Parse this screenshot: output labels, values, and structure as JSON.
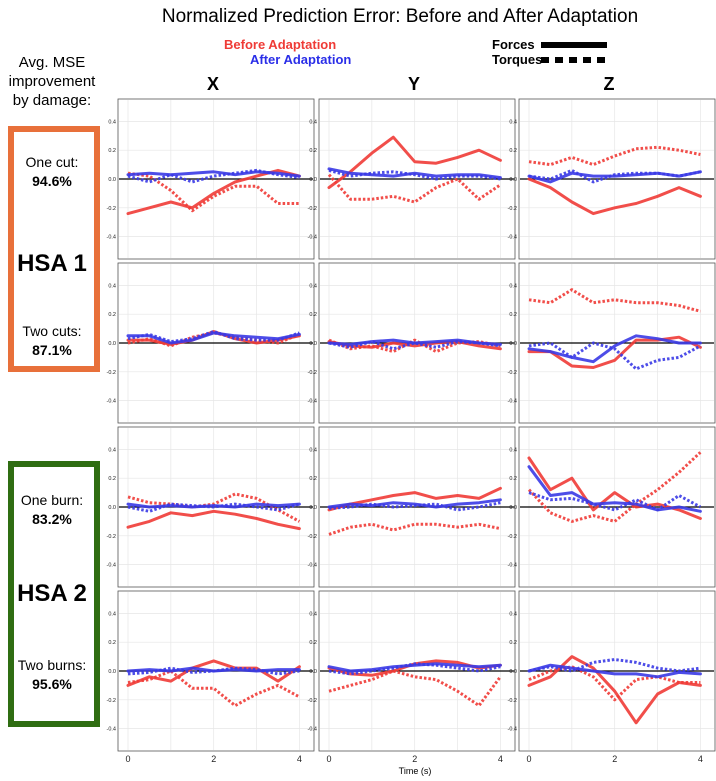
{
  "title": "Normalized Prediction Error: Before and After Adaptation",
  "legend": {
    "before": "Before Adaptation",
    "after": "After Adaptation",
    "forces": "Forces",
    "torques": "Torques"
  },
  "side_header": [
    "Avg. MSE",
    "improvement",
    "by damage:"
  ],
  "columns": [
    "X",
    "Y",
    "Z"
  ],
  "groups": [
    {
      "label": "HSA 1",
      "color": "#e8703a",
      "rows": [
        {
          "name": "One cut:",
          "value": "94.6%"
        },
        {
          "name": "Two cuts:",
          "value": "87.1%"
        }
      ]
    },
    {
      "label": "HSA 2",
      "color": "#2f6d12",
      "rows": [
        {
          "name": "One burn:",
          "value": "83.2%"
        },
        {
          "name": "Two burns:",
          "value": "95.6%"
        }
      ]
    }
  ],
  "colors": {
    "before": "#ef3b36",
    "after": "#3a3ae6"
  },
  "chart_data": {
    "type": "line",
    "xlabel": "Time (s)",
    "xlim": [
      0,
      4.2
    ],
    "ylim": [
      -0.5,
      0.5
    ],
    "xticks": [
      0,
      2,
      4
    ],
    "yticks": [
      -0.4,
      -0.2,
      0.0,
      0.2,
      0.4
    ],
    "x": [
      0,
      0.5,
      1,
      1.5,
      2,
      2.5,
      3,
      3.5,
      4
    ],
    "panels": [
      {
        "row": "One cut",
        "col": "X",
        "series": [
          {
            "name": "Before Adaptation",
            "kind": "Forces",
            "values": [
              -0.24,
              -0.2,
              -0.16,
              -0.2,
              -0.1,
              -0.02,
              0.02,
              0.06,
              0.02
            ]
          },
          {
            "name": "Before Adaptation",
            "kind": "Torques",
            "values": [
              0.04,
              0.02,
              -0.08,
              -0.22,
              -0.12,
              -0.05,
              -0.05,
              -0.17,
              -0.17
            ]
          },
          {
            "name": "After Adaptation",
            "kind": "Forces",
            "values": [
              0.03,
              0.04,
              0.03,
              0.04,
              0.05,
              0.03,
              0.05,
              0.04,
              0.02
            ]
          },
          {
            "name": "After Adaptation",
            "kind": "Torques",
            "values": [
              0.02,
              -0.02,
              0.03,
              -0.02,
              0.02,
              0.04,
              0.06,
              0.03,
              0.01
            ]
          }
        ]
      },
      {
        "row": "One cut",
        "col": "Y",
        "series": [
          {
            "name": "Before Adaptation",
            "kind": "Forces",
            "values": [
              -0.06,
              0.05,
              0.18,
              0.29,
              0.12,
              0.11,
              0.15,
              0.2,
              0.13
            ]
          },
          {
            "name": "Before Adaptation",
            "kind": "Torques",
            "values": [
              0.03,
              -0.14,
              -0.14,
              -0.12,
              -0.16,
              -0.06,
              0.0,
              -0.14,
              -0.04
            ]
          },
          {
            "name": "After Adaptation",
            "kind": "Forces",
            "values": [
              0.07,
              0.04,
              0.03,
              0.02,
              0.04,
              0.02,
              0.03,
              0.03,
              0.01
            ]
          },
          {
            "name": "After Adaptation",
            "kind": "Torques",
            "values": [
              0.06,
              0.02,
              0.04,
              0.05,
              0.03,
              0.0,
              0.02,
              0.02,
              0.0
            ]
          }
        ]
      },
      {
        "row": "One cut",
        "col": "Z",
        "series": [
          {
            "name": "Before Adaptation",
            "kind": "Forces",
            "values": [
              0.0,
              -0.06,
              -0.16,
              -0.24,
              -0.2,
              -0.17,
              -0.12,
              -0.06,
              -0.12
            ]
          },
          {
            "name": "Before Adaptation",
            "kind": "Torques",
            "values": [
              0.12,
              0.1,
              0.15,
              0.1,
              0.16,
              0.21,
              0.22,
              0.2,
              0.17
            ]
          },
          {
            "name": "After Adaptation",
            "kind": "Forces",
            "values": [
              0.02,
              -0.02,
              0.04,
              0.02,
              0.02,
              0.03,
              0.04,
              0.02,
              0.05
            ]
          },
          {
            "name": "After Adaptation",
            "kind": "Torques",
            "values": [
              0.02,
              0.0,
              0.06,
              -0.02,
              0.03,
              0.04,
              0.04,
              0.02,
              0.05
            ]
          }
        ]
      },
      {
        "row": "Two cuts",
        "col": "X",
        "series": [
          {
            "name": "Before Adaptation",
            "kind": "Forces",
            "values": [
              0.02,
              0.02,
              -0.01,
              0.02,
              0.08,
              0.03,
              0.0,
              0.02,
              0.05
            ]
          },
          {
            "name": "Before Adaptation",
            "kind": "Torques",
            "values": [
              0.0,
              0.03,
              -0.02,
              0.04,
              0.07,
              0.04,
              0.02,
              0.0,
              0.06
            ]
          },
          {
            "name": "After Adaptation",
            "kind": "Forces",
            "values": [
              0.05,
              0.05,
              0.0,
              0.02,
              0.07,
              0.05,
              0.04,
              0.03,
              0.06
            ]
          },
          {
            "name": "After Adaptation",
            "kind": "Torques",
            "values": [
              0.03,
              0.06,
              0.01,
              0.03,
              0.08,
              0.03,
              0.02,
              0.02,
              0.07
            ]
          }
        ]
      },
      {
        "row": "Two cuts",
        "col": "Y",
        "series": [
          {
            "name": "Before Adaptation",
            "kind": "Forces",
            "values": [
              0.01,
              -0.02,
              -0.03,
              0.0,
              -0.02,
              0.0,
              0.01,
              -0.02,
              -0.04
            ]
          },
          {
            "name": "Before Adaptation",
            "kind": "Torques",
            "values": [
              0.02,
              -0.04,
              -0.02,
              -0.06,
              0.02,
              -0.06,
              0.0,
              0.01,
              -0.02
            ]
          },
          {
            "name": "After Adaptation",
            "kind": "Forces",
            "values": [
              0.0,
              -0.01,
              0.01,
              0.02,
              0.0,
              0.01,
              0.02,
              0.0,
              -0.01
            ]
          },
          {
            "name": "After Adaptation",
            "kind": "Torques",
            "values": [
              0.0,
              -0.03,
              0.01,
              -0.04,
              0.0,
              -0.03,
              0.01,
              0.0,
              -0.02
            ]
          }
        ]
      },
      {
        "row": "Two cuts",
        "col": "Z",
        "series": [
          {
            "name": "Before Adaptation",
            "kind": "Forces",
            "values": [
              -0.06,
              -0.06,
              -0.16,
              -0.17,
              -0.12,
              0.02,
              0.02,
              0.04,
              -0.03
            ]
          },
          {
            "name": "Before Adaptation",
            "kind": "Torques",
            "values": [
              0.3,
              0.28,
              0.37,
              0.28,
              0.3,
              0.28,
              0.28,
              0.26,
              0.22
            ]
          },
          {
            "name": "After Adaptation",
            "kind": "Forces",
            "values": [
              -0.04,
              -0.06,
              -0.1,
              -0.13,
              -0.02,
              0.05,
              0.03,
              0.0,
              0.0
            ]
          },
          {
            "name": "After Adaptation",
            "kind": "Torques",
            "values": [
              -0.02,
              0.0,
              -0.1,
              0.0,
              -0.04,
              -0.18,
              -0.12,
              -0.1,
              -0.02
            ]
          }
        ]
      },
      {
        "row": "One burn",
        "col": "X",
        "series": [
          {
            "name": "Before Adaptation",
            "kind": "Forces",
            "values": [
              -0.14,
              -0.1,
              -0.04,
              -0.06,
              -0.03,
              -0.05,
              -0.08,
              -0.12,
              -0.15
            ]
          },
          {
            "name": "Before Adaptation",
            "kind": "Torques",
            "values": [
              0.07,
              0.03,
              0.02,
              0.0,
              0.02,
              0.09,
              0.06,
              -0.02,
              -0.1
            ]
          },
          {
            "name": "After Adaptation",
            "kind": "Forces",
            "values": [
              0.02,
              0.0,
              0.01,
              0.0,
              0.01,
              0.0,
              0.02,
              0.01,
              0.02
            ]
          },
          {
            "name": "After Adaptation",
            "kind": "Torques",
            "values": [
              0.0,
              -0.03,
              0.02,
              0.01,
              0.0,
              0.02,
              0.0,
              -0.02,
              0.02
            ]
          }
        ]
      },
      {
        "row": "One burn",
        "col": "Y",
        "series": [
          {
            "name": "Before Adaptation",
            "kind": "Forces",
            "values": [
              -0.02,
              0.02,
              0.05,
              0.08,
              0.1,
              0.06,
              0.08,
              0.06,
              0.13
            ]
          },
          {
            "name": "Before Adaptation",
            "kind": "Torques",
            "values": [
              -0.19,
              -0.14,
              -0.12,
              -0.16,
              -0.12,
              -0.12,
              -0.14,
              -0.12,
              -0.15
            ]
          },
          {
            "name": "After Adaptation",
            "kind": "Forces",
            "values": [
              0.0,
              0.02,
              0.01,
              0.03,
              0.02,
              0.0,
              0.02,
              0.03,
              0.05
            ]
          },
          {
            "name": "After Adaptation",
            "kind": "Torques",
            "values": [
              -0.01,
              0.0,
              0.02,
              0.0,
              0.01,
              0.02,
              -0.02,
              0.0,
              0.03
            ]
          }
        ]
      },
      {
        "row": "One burn",
        "col": "Z",
        "series": [
          {
            "name": "Before Adaptation",
            "kind": "Forces",
            "values": [
              0.34,
              0.12,
              0.2,
              -0.02,
              0.1,
              0.0,
              0.02,
              -0.02,
              -0.08
            ]
          },
          {
            "name": "Before Adaptation",
            "kind": "Torques",
            "values": [
              0.12,
              -0.04,
              -0.1,
              -0.06,
              -0.1,
              0.02,
              0.12,
              0.24,
              0.38
            ]
          },
          {
            "name": "After Adaptation",
            "kind": "Forces",
            "values": [
              0.28,
              0.08,
              0.1,
              0.02,
              0.03,
              0.02,
              -0.02,
              0.0,
              -0.03
            ]
          },
          {
            "name": "After Adaptation",
            "kind": "Torques",
            "values": [
              0.1,
              0.05,
              0.06,
              0.02,
              -0.02,
              0.05,
              -0.02,
              0.08,
              0.0
            ]
          }
        ]
      },
      {
        "row": "Two burns",
        "col": "X",
        "series": [
          {
            "name": "Before Adaptation",
            "kind": "Forces",
            "values": [
              -0.1,
              -0.04,
              -0.07,
              0.02,
              0.07,
              0.02,
              0.02,
              -0.07,
              0.03
            ]
          },
          {
            "name": "Before Adaptation",
            "kind": "Torques",
            "values": [
              -0.08,
              -0.06,
              0.0,
              -0.12,
              -0.12,
              -0.24,
              -0.16,
              -0.1,
              -0.18
            ]
          },
          {
            "name": "After Adaptation",
            "kind": "Forces",
            "values": [
              0.0,
              0.01,
              0.0,
              0.02,
              0.0,
              0.01,
              0.0,
              0.01,
              0.01
            ]
          },
          {
            "name": "After Adaptation",
            "kind": "Torques",
            "values": [
              -0.02,
              -0.01,
              0.02,
              -0.01,
              0.0,
              0.02,
              0.01,
              -0.02,
              0.0
            ]
          }
        ]
      },
      {
        "row": "Two burns",
        "col": "Y",
        "series": [
          {
            "name": "Before Adaptation",
            "kind": "Forces",
            "values": [
              0.02,
              -0.02,
              -0.03,
              0.0,
              0.05,
              0.07,
              0.06,
              0.02,
              0.04
            ]
          },
          {
            "name": "Before Adaptation",
            "kind": "Torques",
            "values": [
              -0.14,
              -0.1,
              -0.06,
              0.0,
              -0.04,
              -0.06,
              -0.14,
              -0.24,
              -0.04
            ]
          },
          {
            "name": "After Adaptation",
            "kind": "Forces",
            "values": [
              0.03,
              0.0,
              0.01,
              0.03,
              0.04,
              0.05,
              0.04,
              0.03,
              0.04
            ]
          },
          {
            "name": "After Adaptation",
            "kind": "Torques",
            "values": [
              0.0,
              -0.02,
              0.0,
              0.02,
              0.05,
              0.04,
              0.02,
              0.0,
              0.03
            ]
          }
        ]
      },
      {
        "row": "Two burns",
        "col": "Z",
        "series": [
          {
            "name": "Before Adaptation",
            "kind": "Forces",
            "values": [
              -0.1,
              -0.04,
              0.1,
              0.02,
              -0.14,
              -0.36,
              -0.16,
              -0.08,
              -0.1
            ]
          },
          {
            "name": "Before Adaptation",
            "kind": "Torques",
            "values": [
              -0.06,
              0.0,
              0.03,
              -0.04,
              -0.2,
              -0.06,
              -0.04,
              -0.08,
              -0.08
            ]
          },
          {
            "name": "After Adaptation",
            "kind": "Forces",
            "values": [
              0.0,
              0.04,
              0.02,
              0.0,
              -0.02,
              -0.02,
              -0.04,
              -0.01,
              -0.02
            ]
          },
          {
            "name": "After Adaptation",
            "kind": "Torques",
            "values": [
              0.0,
              0.03,
              0.0,
              0.06,
              0.08,
              0.06,
              0.02,
              0.0,
              0.02
            ]
          }
        ]
      }
    ]
  }
}
